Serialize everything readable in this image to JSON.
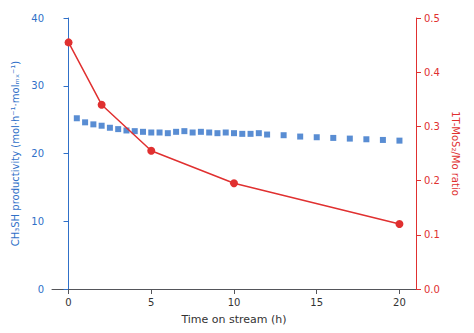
{
  "chart_data": {
    "type": "line",
    "xlabel": "Time on stream (h)",
    "ylabel": "CH₃SH productivity (mol·h⁻¹·molₘₓ⁻¹)",
    "y2label": "1T-MoS₂/Mo ratio",
    "xlim": [
      -1,
      21
    ],
    "xticks": [
      0,
      5,
      10,
      15,
      20
    ],
    "ylim": [
      0,
      40
    ],
    "yticks": [
      0,
      10,
      20,
      30,
      40
    ],
    "y2lim": [
      0.0,
      0.5
    ],
    "y2ticks": [
      {
        "value": 0.0,
        "label": "0.0"
      },
      0.1,
      0.2,
      0.3,
      0.4,
      0.5
    ],
    "grid": false,
    "series": [
      {
        "type": "scatter",
        "marker": "square",
        "color": "#3070c8",
        "x": [
          0.5,
          1.0,
          1.5,
          2.0,
          2.5,
          3.0,
          3.5,
          4.0,
          4.5,
          5.0,
          5.5,
          6.0,
          6.5,
          7.0,
          7.5,
          8.0,
          8.5,
          9.0,
          9.5,
          10.0,
          10.5,
          11.0,
          11.5,
          12.0,
          13.0,
          14.0,
          15.0,
          16.0,
          17.0,
          18.0,
          19.0,
          20.0
        ],
        "values": [
          25.2,
          24.6,
          24.3,
          24.1,
          23.8,
          23.6,
          23.4,
          23.3,
          23.2,
          23.1,
          23.1,
          23.0,
          23.2,
          23.3,
          23.1,
          23.2,
          23.1,
          23.0,
          23.1,
          23.0,
          22.9,
          22.9,
          23.0,
          22.8,
          22.7,
          22.5,
          22.4,
          22.3,
          22.2,
          22.1,
          22.0,
          21.9
        ]
      },
      {
        "type": "line",
        "marker": "circle",
        "axis": "y2",
        "color": "#e03030",
        "x": [
          0,
          2,
          5,
          10,
          20
        ],
        "values": [
          0.455,
          0.34,
          0.255,
          0.195,
          0.12
        ]
      }
    ]
  }
}
